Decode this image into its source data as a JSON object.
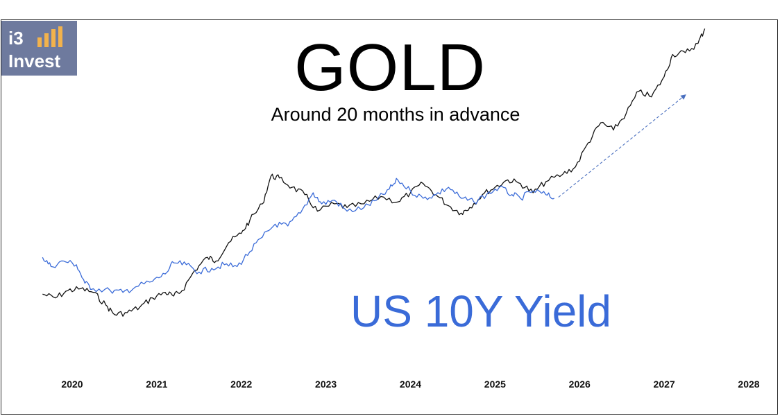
{
  "logo": {
    "line1": "i3",
    "line2": "Invest",
    "bar_color": "#f2b24c",
    "bg_color": "#6e7a9e"
  },
  "chart_data": {
    "type": "line",
    "title": "GOLD",
    "subtitle": "Around 20 months in advance",
    "annotation": "US 10Y Yield",
    "xlabel": "",
    "ylabel": "",
    "xlim": [
      2019.5,
      2028.2
    ],
    "x_ticks": [
      "2020",
      "2021",
      "2022",
      "2023",
      "2024",
      "2025",
      "2026",
      "2027",
      "2028"
    ],
    "grid": false,
    "series": [
      {
        "color": "#111111",
        "points": [
          [
            2019.65,
            0.255
          ],
          [
            2019.8,
            0.245
          ],
          [
            2019.95,
            0.265
          ],
          [
            2020.1,
            0.27
          ],
          [
            2020.25,
            0.26
          ],
          [
            2020.4,
            0.225
          ],
          [
            2020.5,
            0.2
          ],
          [
            2020.65,
            0.205
          ],
          [
            2020.8,
            0.22
          ],
          [
            2020.95,
            0.245
          ],
          [
            2021.1,
            0.26
          ],
          [
            2021.2,
            0.25
          ],
          [
            2021.3,
            0.265
          ],
          [
            2021.45,
            0.32
          ],
          [
            2021.6,
            0.355
          ],
          [
            2021.7,
            0.345
          ],
          [
            2021.85,
            0.395
          ],
          [
            2022.0,
            0.42
          ],
          [
            2022.1,
            0.455
          ],
          [
            2022.25,
            0.5
          ],
          [
            2022.35,
            0.575
          ],
          [
            2022.45,
            0.57
          ],
          [
            2022.6,
            0.545
          ],
          [
            2022.75,
            0.525
          ],
          [
            2022.9,
            0.48
          ],
          [
            2023.1,
            0.5
          ],
          [
            2023.25,
            0.49
          ],
          [
            2023.45,
            0.5
          ],
          [
            2023.65,
            0.52
          ],
          [
            2023.85,
            0.505
          ],
          [
            2024.0,
            0.53
          ],
          [
            2024.15,
            0.555
          ],
          [
            2024.3,
            0.525
          ],
          [
            2024.45,
            0.495
          ],
          [
            2024.6,
            0.475
          ],
          [
            2024.7,
            0.49
          ],
          [
            2024.85,
            0.525
          ],
          [
            2025.0,
            0.545
          ],
          [
            2025.15,
            0.565
          ],
          [
            2025.3,
            0.555
          ],
          [
            2025.45,
            0.53
          ],
          [
            2025.6,
            0.56
          ],
          [
            2025.8,
            0.58
          ],
          [
            2025.95,
            0.6
          ],
          [
            2026.1,
            0.665
          ],
          [
            2026.25,
            0.72
          ],
          [
            2026.4,
            0.7
          ],
          [
            2026.55,
            0.745
          ],
          [
            2026.7,
            0.805
          ],
          [
            2026.85,
            0.79
          ],
          [
            2027.0,
            0.845
          ],
          [
            2027.1,
            0.905
          ],
          [
            2027.25,
            0.91
          ],
          [
            2027.4,
            0.935
          ],
          [
            2027.48,
            0.975
          ]
        ]
      },
      {
        "color": "#3a6bd8",
        "points": [
          [
            2019.65,
            0.355
          ],
          [
            2019.75,
            0.33
          ],
          [
            2019.9,
            0.345
          ],
          [
            2020.05,
            0.335
          ],
          [
            2020.15,
            0.285
          ],
          [
            2020.25,
            0.27
          ],
          [
            2020.45,
            0.265
          ],
          [
            2020.6,
            0.26
          ],
          [
            2020.75,
            0.275
          ],
          [
            2020.95,
            0.29
          ],
          [
            2021.1,
            0.31
          ],
          [
            2021.2,
            0.34
          ],
          [
            2021.35,
            0.335
          ],
          [
            2021.5,
            0.315
          ],
          [
            2021.65,
            0.325
          ],
          [
            2021.8,
            0.335
          ],
          [
            2021.95,
            0.33
          ],
          [
            2022.1,
            0.37
          ],
          [
            2022.25,
            0.41
          ],
          [
            2022.4,
            0.445
          ],
          [
            2022.55,
            0.44
          ],
          [
            2022.7,
            0.475
          ],
          [
            2022.85,
            0.53
          ],
          [
            2022.95,
            0.5
          ],
          [
            2023.1,
            0.51
          ],
          [
            2023.25,
            0.48
          ],
          [
            2023.45,
            0.49
          ],
          [
            2023.6,
            0.51
          ],
          [
            2023.75,
            0.54
          ],
          [
            2023.85,
            0.565
          ],
          [
            2024.0,
            0.535
          ],
          [
            2024.15,
            0.515
          ],
          [
            2024.3,
            0.525
          ],
          [
            2024.45,
            0.545
          ],
          [
            2024.6,
            0.515
          ],
          [
            2024.75,
            0.505
          ],
          [
            2024.9,
            0.525
          ],
          [
            2025.05,
            0.545
          ],
          [
            2025.2,
            0.525
          ],
          [
            2025.3,
            0.515
          ],
          [
            2025.45,
            0.535
          ],
          [
            2025.6,
            0.525
          ],
          [
            2025.7,
            0.515
          ]
        ]
      }
    ],
    "projection_arrow": {
      "from": [
        2025.75,
        0.518
      ],
      "to": [
        2027.25,
        0.795
      ],
      "color": "#4a6fbf"
    }
  }
}
